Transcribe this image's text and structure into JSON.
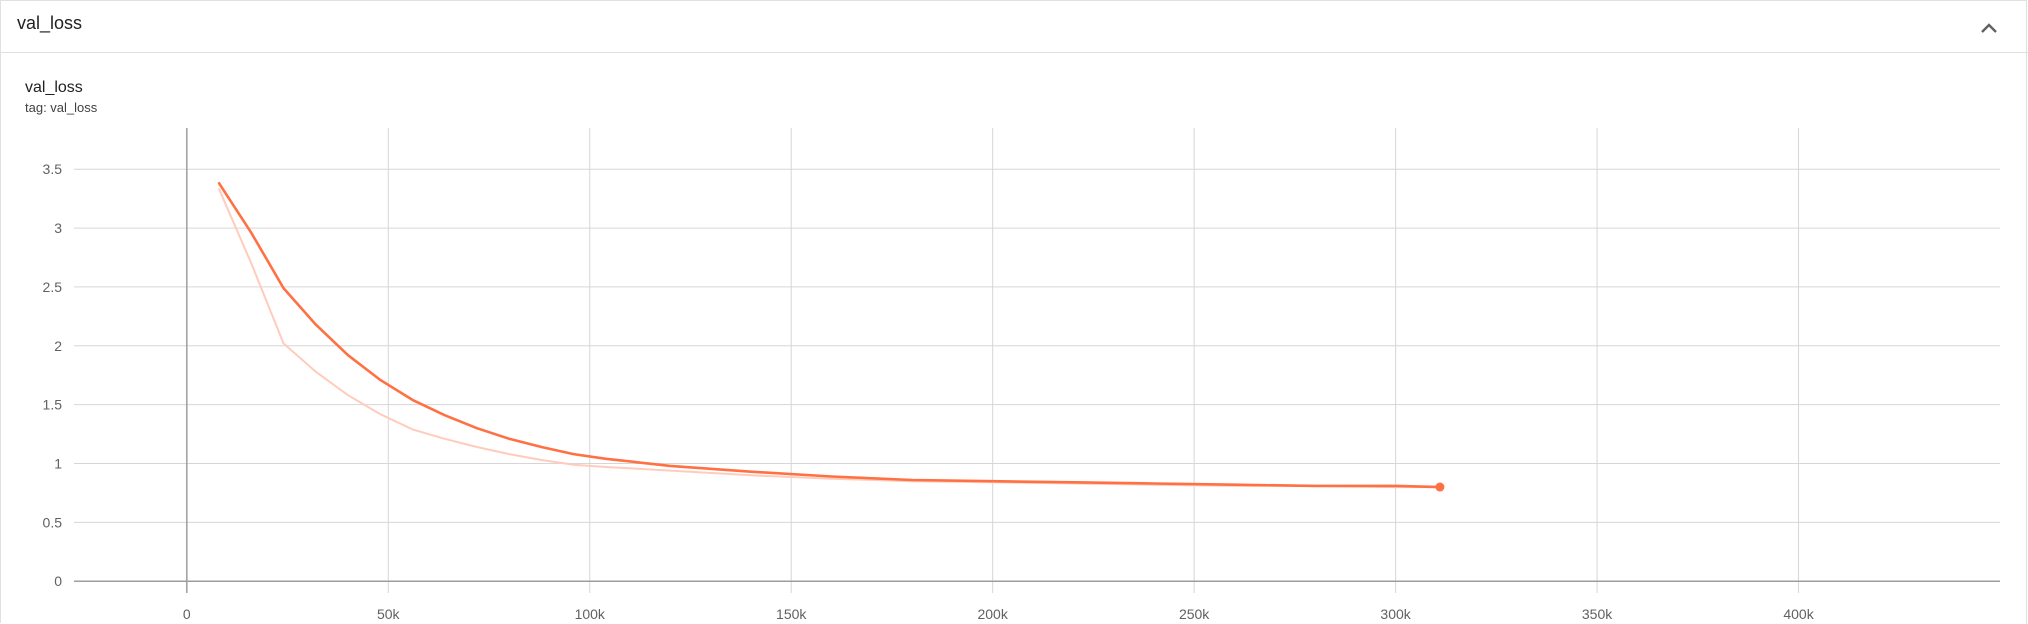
{
  "card": {
    "title": "val_loss",
    "collapse_icon": "chevron-up-icon"
  },
  "chart_data": {
    "type": "line",
    "title": "val_loss",
    "tag": "tag: val_loss",
    "xlim": [
      -28000,
      450000
    ],
    "ylim": [
      -0.1,
      3.85
    ],
    "x_ticks": [
      0,
      50000,
      100000,
      150000,
      200000,
      250000,
      300000,
      350000,
      400000
    ],
    "x_tick_labels": [
      "0",
      "50k",
      "100k",
      "150k",
      "200k",
      "250k",
      "300k",
      "350k",
      "400k"
    ],
    "y_ticks": [
      0,
      0.5,
      1,
      1.5,
      2,
      2.5,
      3,
      3.5
    ],
    "y_tick_labels": [
      "0",
      "0.5",
      "1",
      "1.5",
      "2",
      "2.5",
      "3",
      "3.5"
    ],
    "grid": true,
    "colors": {
      "smoothed": "#ff7043",
      "raw": "#ffccbc"
    },
    "series": [
      {
        "role": "raw",
        "x": [
          8000,
          16000,
          24000,
          32000,
          40000,
          48000,
          56000,
          64000,
          72000,
          80000,
          88000,
          96000,
          104000,
          120000,
          140000,
          160000,
          180000,
          200000,
          220000,
          240000,
          260000,
          280000,
          300000,
          311000
        ],
        "y": [
          3.33,
          2.7,
          2.02,
          1.78,
          1.58,
          1.42,
          1.29,
          1.21,
          1.14,
          1.08,
          1.03,
          0.99,
          0.97,
          0.94,
          0.9,
          0.87,
          0.85,
          0.84,
          0.83,
          0.82,
          0.81,
          0.81,
          0.8,
          0.8
        ]
      },
      {
        "role": "smoothed",
        "x": [
          8000,
          16000,
          24000,
          32000,
          40000,
          48000,
          56000,
          64000,
          72000,
          80000,
          88000,
          96000,
          104000,
          120000,
          140000,
          160000,
          180000,
          200000,
          220000,
          240000,
          260000,
          280000,
          300000,
          311000
        ],
        "y": [
          3.38,
          2.96,
          2.49,
          2.18,
          1.92,
          1.71,
          1.54,
          1.41,
          1.3,
          1.21,
          1.14,
          1.08,
          1.04,
          0.98,
          0.93,
          0.89,
          0.86,
          0.85,
          0.84,
          0.83,
          0.82,
          0.81,
          0.81,
          0.8
        ]
      }
    ]
  }
}
